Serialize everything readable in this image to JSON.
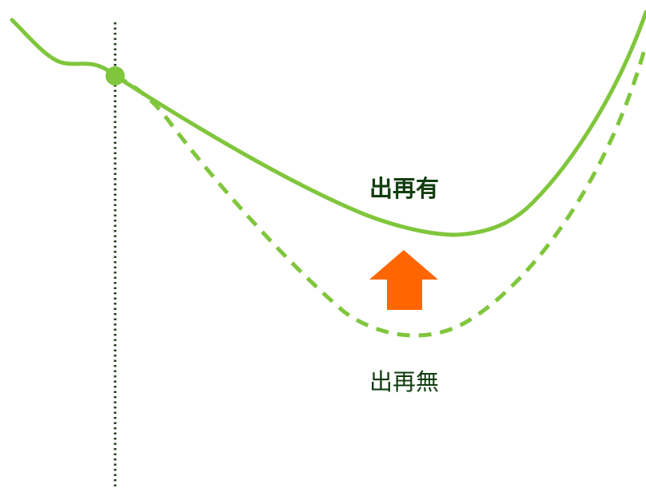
{
  "labels": {
    "with_recovery": "出再有",
    "without_recovery": "出再無"
  },
  "colors": {
    "curve": "#80c63c",
    "marker": "#80c63c",
    "divider": "#1b3a14",
    "arrow": "#ff6600",
    "label_text": "#123d0f"
  }
}
